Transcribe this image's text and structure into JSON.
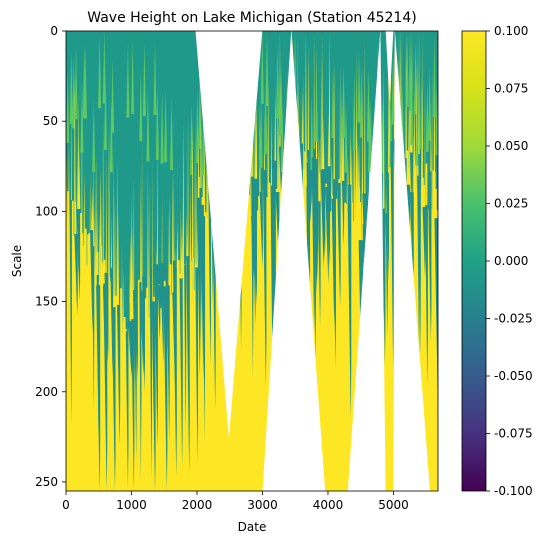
{
  "chart_data": {
    "type": "heatmap",
    "title": "Wave Height on Lake Michigan (Station 45214)",
    "xlabel": "Date",
    "ylabel": "Scale",
    "xlim": [
      0,
      5680
    ],
    "ylim": [
      255,
      0
    ],
    "x_ticks": [
      0,
      1000,
      2000,
      3000,
      4000,
      5000
    ],
    "y_ticks": [
      0,
      50,
      100,
      150,
      200,
      250
    ],
    "colorbar": {
      "colormap": "viridis",
      "clim": [
        -0.1,
        0.1
      ],
      "ticks": [
        "-0.100",
        "-0.075",
        "-0.050",
        "-0.025",
        "0.000",
        "0.025",
        "0.050",
        "0.075",
        "0.100"
      ]
    },
    "colors": {
      "neutral": "#21918c",
      "high": "#fde725",
      "mid_green": "#5ec962",
      "low": "#440154",
      "no_data": "#ffffff"
    },
    "cone_of_influence_gaps": [
      {
        "x_start": 1975,
        "x_apex": 2520,
        "x_end": 3000,
        "apex_scale": 0,
        "bottom_scale": 226
      },
      {
        "x_start": 3000,
        "x_apex": 3440,
        "x_end": 3960,
        "apex_scale": 0,
        "bottom_scale": 255
      },
      {
        "x_start": 4300,
        "x_apex": 4800,
        "x_end": 4880,
        "apex_scale": 0,
        "bottom_scale": 255
      },
      {
        "x_start": 4880,
        "x_apex": 4940,
        "x_end": 5000,
        "apex_scale": 0,
        "bottom_scale": 40
      },
      {
        "x_start": 5000,
        "x_apex": 5020,
        "x_end": 5560,
        "apex_scale": 0,
        "bottom_scale": 255
      }
    ]
  }
}
